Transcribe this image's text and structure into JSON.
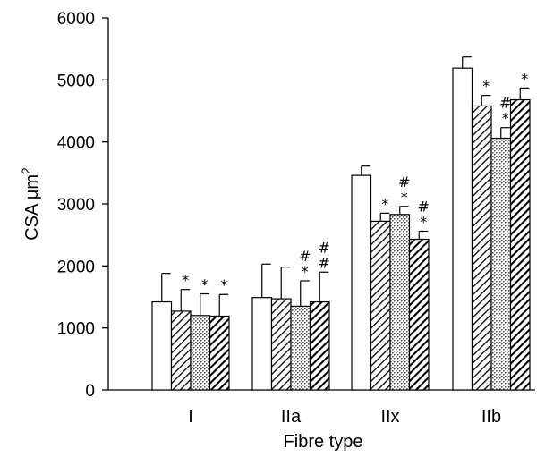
{
  "chart_data": {
    "type": "bar",
    "title": "",
    "xlabel": "Fibre type",
    "ylabel": "CSA μm",
    "ylabel_superscript": "2",
    "ylim": [
      0,
      6000
    ],
    "yticks": [
      "0",
      "1000",
      "2000",
      "3000",
      "4000",
      "5000",
      "6000"
    ],
    "grid": false,
    "categories": [
      "I",
      "IIa",
      "IIx",
      "IIb"
    ],
    "series": [
      {
        "fill": "white",
        "values": [
          1420,
          1490,
          3460,
          5190
        ],
        "errors": [
          460,
          540,
          150,
          180
        ],
        "annotations": [
          "",
          "",
          "",
          ""
        ]
      },
      {
        "fill": "diagonal-hatch",
        "values": [
          1270,
          1470,
          2720,
          4580
        ],
        "errors": [
          350,
          510,
          130,
          170
        ],
        "annotations": [
          "*",
          "",
          "*",
          "*"
        ]
      },
      {
        "fill": "dotted",
        "values": [
          1200,
          1350,
          2830,
          4060
        ],
        "errors": [
          350,
          410,
          130,
          170
        ],
        "annotations": [
          "*",
          "#*",
          "#*",
          "#*"
        ]
      },
      {
        "fill": "dark-diagonal-hatch",
        "values": [
          1190,
          1420,
          2430,
          4680
        ],
        "errors": [
          350,
          480,
          130,
          190
        ],
        "annotations": [
          "*",
          "##",
          "#*",
          "*"
        ]
      }
    ]
  }
}
